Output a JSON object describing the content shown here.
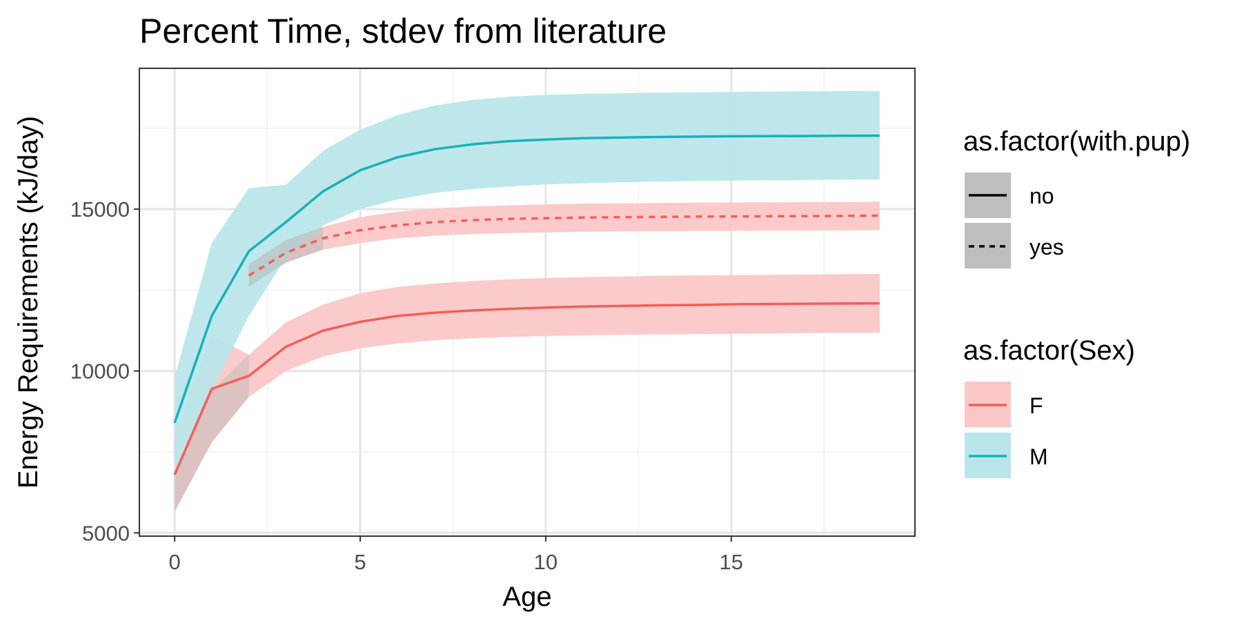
{
  "chart_data": {
    "type": "line",
    "title": "Percent Time, stdev from literature",
    "xlabel": "Age",
    "ylabel": "Energy Requirements (kJ/day)",
    "xlim": [
      -0.95,
      19.95
    ],
    "ylim": [
      4900,
      19350
    ],
    "x_ticks": [
      0,
      5,
      10,
      15
    ],
    "x_tick_labels": [
      "0",
      "5",
      "10",
      "15"
    ],
    "y_ticks": [
      5000,
      10000,
      15000
    ],
    "y_tick_labels": [
      "5000",
      "10000",
      "15000"
    ],
    "grid": true,
    "legend_position": "right",
    "series": [
      {
        "sex": "F",
        "with_pup": "no",
        "linetype": "solid",
        "x": [
          0,
          1,
          2,
          3,
          4,
          5,
          6,
          7,
          8,
          9,
          10,
          11,
          12,
          13,
          14,
          15,
          16,
          17,
          18,
          19
        ],
        "y": [
          6800,
          9450,
          9850,
          10750,
          11250,
          11520,
          11700,
          11800,
          11870,
          11920,
          11960,
          11990,
          12010,
          12030,
          12040,
          12060,
          12070,
          12080,
          12085,
          12090
        ],
        "lower": [
          5650,
          7800,
          9200,
          10000,
          10450,
          10700,
          10850,
          10950,
          11010,
          11050,
          11080,
          11100,
          11120,
          11130,
          11140,
          11150,
          11160,
          11170,
          11175,
          11180
        ],
        "upper": [
          8000,
          11100,
          10500,
          11500,
          12050,
          12400,
          12600,
          12700,
          12780,
          12830,
          12870,
          12900,
          12920,
          12940,
          12950,
          12960,
          12970,
          12980,
          12990,
          13000
        ]
      },
      {
        "sex": "F",
        "with_pup": "yes",
        "linetype": "dashed",
        "x": [
          2,
          3,
          4,
          5,
          6,
          7,
          8,
          9,
          10,
          11,
          12,
          13,
          14,
          15,
          16,
          17,
          18,
          19
        ],
        "y": [
          12950,
          13650,
          14100,
          14350,
          14500,
          14600,
          14660,
          14700,
          14720,
          14740,
          14750,
          14760,
          14770,
          14775,
          14780,
          14785,
          14790,
          14800
        ],
        "lower": [
          12600,
          13350,
          13750,
          13950,
          14100,
          14180,
          14230,
          14260,
          14280,
          14300,
          14310,
          14320,
          14325,
          14330,
          14335,
          14340,
          14345,
          14350
        ],
        "upper": [
          13300,
          14050,
          14450,
          14750,
          14920,
          15020,
          15080,
          15120,
          15150,
          15170,
          15180,
          15190,
          15200,
          15205,
          15210,
          15215,
          15220,
          15230
        ]
      },
      {
        "sex": "M",
        "with_pup": "no",
        "linetype": "solid",
        "x": [
          0,
          1,
          2,
          3,
          4,
          5,
          6,
          7,
          8,
          9,
          10,
          11,
          12,
          13,
          14,
          15,
          16,
          17,
          18,
          19
        ],
        "y": [
          8400,
          11700,
          13700,
          14600,
          15550,
          16200,
          16600,
          16850,
          17000,
          17100,
          17150,
          17190,
          17210,
          17230,
          17240,
          17250,
          17255,
          17260,
          17265,
          17270
        ],
        "lower": [
          6900,
          9400,
          11700,
          13500,
          14500,
          15000,
          15300,
          15500,
          15620,
          15700,
          15760,
          15800,
          15830,
          15850,
          15870,
          15880,
          15890,
          15900,
          15910,
          15920
        ],
        "upper": [
          9800,
          13950,
          15650,
          15750,
          16800,
          17450,
          17900,
          18200,
          18370,
          18470,
          18530,
          18560,
          18580,
          18600,
          18610,
          18620,
          18630,
          18640,
          18645,
          18650
        ]
      }
    ],
    "legends": [
      {
        "title": "as.factor(with.pup)",
        "entries": [
          {
            "label": "no",
            "linetype": "solid"
          },
          {
            "label": "yes",
            "linetype": "dashed"
          }
        ]
      },
      {
        "title": "as.factor(Sex)",
        "entries": [
          {
            "label": "F",
            "color": "#F8766D"
          },
          {
            "label": "M",
            "color": "#00BFC4"
          }
        ]
      }
    ]
  },
  "colors": {
    "F": "#F8766D",
    "M": "#00BFC4",
    "F_line": "#F35E5A",
    "M_line": "#17B1B6",
    "F_ribbon": "#FBC7C7",
    "M_ribbon": "#B9E6EA",
    "yes_ribbon": "#B8B8B8",
    "legend_key_grey": "#BEBEBE",
    "grid_major": "#E5E5E5",
    "grid_minor": "#F0F0F0"
  }
}
